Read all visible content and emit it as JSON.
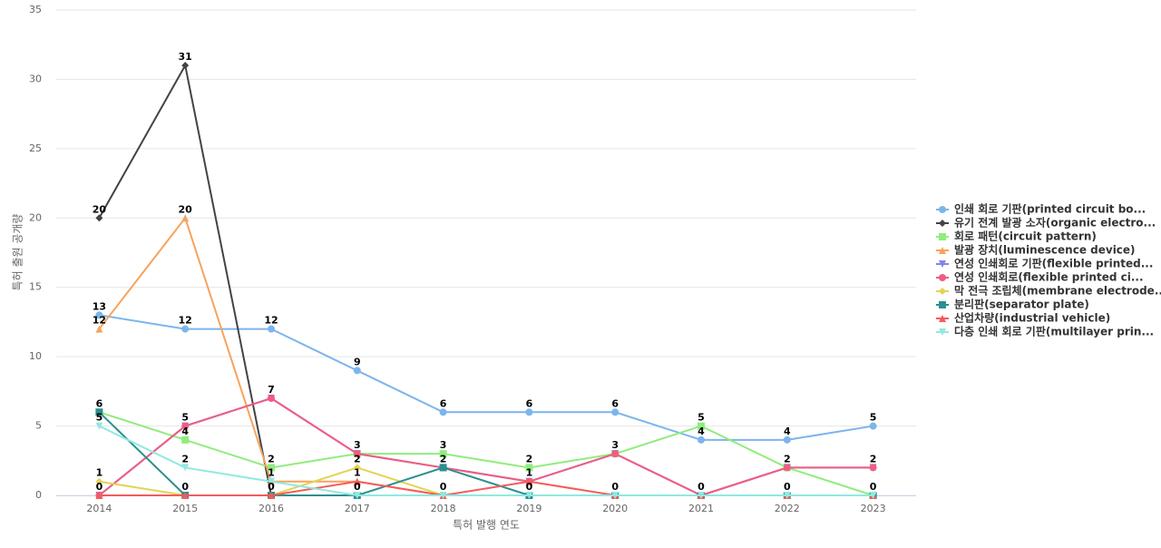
{
  "chart_data": {
    "type": "line",
    "x_label": "특허 발행 연도",
    "y_label": "특허 출원 공개량",
    "categories": [
      "2014",
      "2015",
      "2016",
      "2017",
      "2018",
      "2019",
      "2020",
      "2021",
      "2022",
      "2023"
    ],
    "ylim": [
      0,
      35
    ],
    "yticks": [
      0,
      5,
      10,
      15,
      20,
      25,
      30,
      35
    ],
    "grid": true,
    "legend": "right",
    "series": [
      {
        "name": "인쇄 회로 기판(printed circuit bo...",
        "color": "#7cb5ec",
        "marker": "circle",
        "values": [
          13,
          12,
          12,
          9,
          6,
          6,
          6,
          4,
          4,
          5
        ]
      },
      {
        "name": "유기 전계 발광 소자(organic electro...",
        "color": "#434348",
        "marker": "diamond",
        "values": [
          20,
          31,
          0,
          0,
          0,
          0,
          0,
          0,
          0,
          0
        ]
      },
      {
        "name": "회로 패턴(circuit pattern)",
        "color": "#90ed7d",
        "marker": "square",
        "values": [
          6,
          4,
          2,
          3,
          3,
          2,
          3,
          5,
          2,
          0
        ]
      },
      {
        "name": "발광 장치(luminescence device)",
        "color": "#f7a35c",
        "marker": "triangle",
        "values": [
          12,
          20,
          1,
          1,
          0,
          0,
          0,
          0,
          0,
          0
        ]
      },
      {
        "name": "연성 인쇄회로 기판(flexible printed...",
        "color": "#8085e9",
        "marker": "triangle-down",
        "values": [
          0,
          5,
          7,
          3,
          2,
          1,
          3,
          0,
          2,
          2
        ]
      },
      {
        "name": "연성 인쇄회로(flexible printed ci...",
        "color": "#f15c80",
        "marker": "circle",
        "values": [
          0,
          5,
          7,
          3,
          2,
          1,
          3,
          0,
          2,
          2
        ]
      },
      {
        "name": "막 전극 조립체(membrane electrode...",
        "color": "#e4d354",
        "marker": "diamond",
        "values": [
          1,
          0,
          0,
          2,
          0,
          0,
          0,
          0,
          0,
          0
        ]
      },
      {
        "name": "분리판(separator plate)",
        "color": "#2b908f",
        "marker": "square",
        "values": [
          6,
          0,
          0,
          0,
          2,
          0,
          0,
          0,
          0,
          0
        ]
      },
      {
        "name": "산업차량(industrial vehicle)",
        "color": "#f45b5b",
        "marker": "triangle",
        "values": [
          0,
          0,
          0,
          1,
          0,
          1,
          0,
          0,
          0,
          0
        ]
      },
      {
        "name": "다층 인쇄 회로 기판(multilayer prin...",
        "color": "#91e8e1",
        "marker": "triangle-down",
        "values": [
          5,
          2,
          1,
          0,
          0,
          0,
          0,
          0,
          0,
          0
        ]
      }
    ]
  }
}
